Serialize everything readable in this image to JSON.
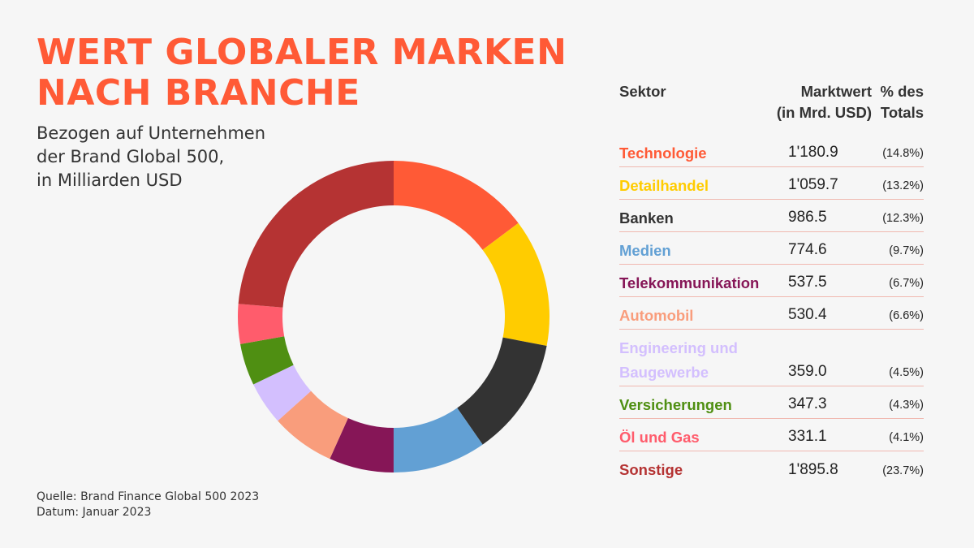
{
  "title": {
    "line1": "WERT GLOBALER MARKEN",
    "line2": "NACH BRANCHE"
  },
  "subtitle": {
    "line1": "Bezogen auf Unternehmen",
    "line2": "der Brand Global 500,",
    "line3": "in Milliarden USD"
  },
  "source": {
    "line1": "Quelle: Brand Finance Global 500 2023",
    "line2": "Datum: Januar 2023"
  },
  "table": {
    "header_sector": "Sektor",
    "header_value_1": "Marktwert",
    "header_value_2": "(in Mrd. USD)",
    "header_pct_1": "% des",
    "header_pct_2": "Totals"
  },
  "chart_data": {
    "type": "pie",
    "donut": true,
    "categories": [
      "Technologie",
      "Detailhandel",
      "Banken",
      "Medien",
      "Telekommunikation",
      "Automobil",
      "Engineering und Baugewerbe",
      "Versicherungen",
      "Öl und Gas",
      "Sonstige"
    ],
    "values": [
      1180.9,
      1059.7,
      986.5,
      774.6,
      537.5,
      530.4,
      359.0,
      347.3,
      331.1,
      1895.8
    ],
    "value_labels": [
      "1'180.9",
      "1'059.7",
      "986.5",
      "774.6",
      "537.5",
      "530.4",
      "359.0",
      "347.3",
      "331.1",
      "1'895.8"
    ],
    "percent_labels": [
      "(14.8%)",
      "(13.2%)",
      "(12.3%)",
      "(9.7%)",
      "(6.7%)",
      "(6.6%)",
      "(4.5%)",
      "(4.3%)",
      "(4.1%)",
      "(23.7%)"
    ],
    "colors": [
      "#ff5a36",
      "#ffcc00",
      "#333333",
      "#62a0d4",
      "#861657",
      "#f99d7c",
      "#d3bffe",
      "#4f8f12",
      "#ff5c6c",
      "#b53333"
    ],
    "start_angle_deg": 0,
    "direction": "clockwise"
  }
}
